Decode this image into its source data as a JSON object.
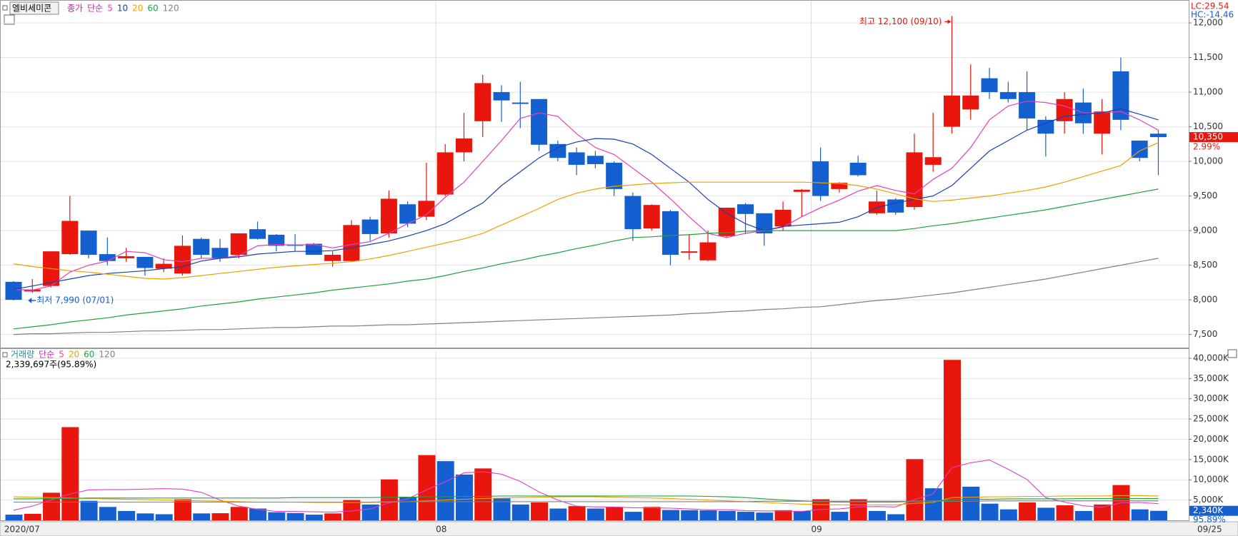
{
  "chart_data": [
    {
      "type": "candlestick",
      "title": "엘비세미콘",
      "legend_title": "종가",
      "legend_subtitle": "단순",
      "legend_title_color": "#d020b0",
      "lc_label": "LC:29.54",
      "hc_label": "HC:-14.46",
      "up_color": "#e8160c",
      "down_color": "#1560d0",
      "open": [
        8260,
        8120,
        8200,
        8660,
        9000,
        8660,
        8600,
        8620,
        8450,
        8380,
        8880,
        8750,
        8650,
        9020,
        8940,
        8800,
        8810,
        8560,
        8560,
        9160,
        8960,
        9380,
        9200,
        9520,
        10130,
        10580,
        11000,
        10850,
        10900,
        10250,
        10130,
        10080,
        9980,
        9500,
        9030,
        9280,
        8680,
        8570,
        8920,
        9380,
        9250,
        9060,
        9560,
        10000,
        9600,
        9980,
        9250,
        9450,
        9340,
        9950,
        10500,
        10750,
        11200,
        11000,
        11000,
        10600,
        10580,
        10850,
        10400,
        11300,
        10300,
        10400
      ],
      "high": [
        8270,
        8300,
        8700,
        9500,
        9000,
        8900,
        8750,
        8620,
        8600,
        8930,
        8900,
        8880,
        8960,
        9130,
        8950,
        8950,
        8820,
        8700,
        9150,
        9200,
        9580,
        9420,
        9980,
        10250,
        10700,
        11250,
        11100,
        11150,
        10900,
        10300,
        10200,
        10150,
        10000,
        9550,
        9380,
        9300,
        8950,
        9000,
        9330,
        9400,
        9250,
        9420,
        9600,
        10200,
        9700,
        10080,
        9580,
        9470,
        10400,
        10700,
        12100,
        11400,
        11350,
        11150,
        11300,
        10650,
        11000,
        11050,
        10900,
        11500,
        10300,
        10450
      ],
      "low": [
        7990,
        8100,
        8180,
        8650,
        8600,
        8500,
        8550,
        8350,
        8400,
        8350,
        8600,
        8550,
        8600,
        8870,
        8700,
        8700,
        8650,
        8480,
        8550,
        8850,
        8900,
        9050,
        9150,
        9500,
        10000,
        10350,
        10570,
        10480,
        10150,
        10000,
        9800,
        9900,
        9500,
        8850,
        9000,
        8500,
        8580,
        8560,
        8900,
        8950,
        8780,
        9000,
        9200,
        9430,
        9550,
        9780,
        9230,
        9230,
        9300,
        9850,
        10400,
        10600,
        10900,
        10850,
        10450,
        10070,
        10400,
        10400,
        10100,
        10450,
        10000,
        9800
      ],
      "close": [
        8000,
        8150,
        8700,
        9140,
        8650,
        8560,
        8630,
        8460,
        8520,
        8780,
        8650,
        8600,
        8960,
        8880,
        8780,
        8780,
        8650,
        8650,
        9080,
        8950,
        9460,
        9100,
        9430,
        10130,
        10330,
        11130,
        10880,
        10830,
        10240,
        10050,
        9950,
        9960,
        9600,
        9020,
        9370,
        8650,
        8700,
        8830,
        9330,
        9240,
        8960,
        9300,
        9590,
        9500,
        9690,
        9800,
        9420,
        9260,
        10130,
        10060,
        10950,
        10950,
        11000,
        10900,
        10620,
        10400,
        10900,
        10550,
        10720,
        10600,
        10050,
        10350
      ],
      "series": [
        {
          "name": "5",
          "color": "#e040c0",
          "values": [
            8150,
            8140,
            8200,
            8400,
            8500,
            8560,
            8700,
            8680,
            8580,
            8550,
            8600,
            8600,
            8640,
            8780,
            8800,
            8790,
            8800,
            8750,
            8800,
            8840,
            8960,
            9100,
            9230,
            9480,
            9700,
            10000,
            10300,
            10620,
            10700,
            10650,
            10400,
            10200,
            10100,
            9900,
            9700,
            9460,
            9200,
            8960,
            8900,
            8960,
            9000,
            9050,
            9200,
            9330,
            9440,
            9570,
            9650,
            9580,
            9530,
            9740,
            9900,
            10200,
            10600,
            10800,
            10870,
            10850,
            10800,
            10700,
            10700,
            10720,
            10600,
            10450
          ]
        },
        {
          "name": "10",
          "color": "#1a3fb0",
          "values": [
            8150,
            8200,
            8250,
            8300,
            8350,
            8380,
            8400,
            8420,
            8450,
            8480,
            8560,
            8600,
            8620,
            8660,
            8680,
            8700,
            8700,
            8710,
            8750,
            8800,
            8850,
            8920,
            9000,
            9100,
            9250,
            9400,
            9650,
            9850,
            10050,
            10200,
            10280,
            10330,
            10320,
            10250,
            10100,
            9900,
            9700,
            9450,
            9250,
            9100,
            9000,
            9060,
            9080,
            9100,
            9120,
            9200,
            9330,
            9400,
            9450,
            9500,
            9650,
            9900,
            10150,
            10300,
            10450,
            10550,
            10650,
            10680,
            10700,
            10760,
            10680,
            10600
          ]
        },
        {
          "name": "20",
          "color": "#f0a000",
          "values": [
            8520,
            8480,
            8450,
            8420,
            8400,
            8370,
            8340,
            8310,
            8300,
            8320,
            8350,
            8380,
            8410,
            8440,
            8470,
            8490,
            8510,
            8530,
            8550,
            8590,
            8640,
            8700,
            8760,
            8820,
            8880,
            8960,
            9080,
            9200,
            9320,
            9450,
            9540,
            9600,
            9640,
            9660,
            9680,
            9690,
            9700,
            9700,
            9700,
            9700,
            9700,
            9700,
            9700,
            9690,
            9680,
            9650,
            9600,
            9530,
            9460,
            9420,
            9440,
            9470,
            9500,
            9540,
            9580,
            9630,
            9700,
            9780,
            9860,
            9940,
            10150,
            10270
          ]
        },
        {
          "name": "60",
          "color": "#20a040",
          "values": [
            7580,
            7610,
            7640,
            7680,
            7710,
            7740,
            7780,
            7810,
            7840,
            7870,
            7910,
            7940,
            7970,
            8010,
            8040,
            8070,
            8100,
            8140,
            8170,
            8200,
            8230,
            8270,
            8300,
            8350,
            8410,
            8460,
            8520,
            8570,
            8630,
            8680,
            8740,
            8790,
            8850,
            8900,
            8910,
            8930,
            8940,
            8960,
            8970,
            8990,
            9000,
            9000,
            9000,
            9000,
            9000,
            9000,
            9000,
            9000,
            9030,
            9070,
            9100,
            9140,
            9180,
            9220,
            9260,
            9300,
            9350,
            9400,
            9450,
            9500,
            9550,
            9600
          ]
        },
        {
          "name": "120",
          "color": "#808080",
          "values": [
            7500,
            7510,
            7510,
            7520,
            7530,
            7530,
            7540,
            7550,
            7550,
            7560,
            7570,
            7570,
            7580,
            7590,
            7600,
            7600,
            7610,
            7620,
            7620,
            7630,
            7640,
            7640,
            7650,
            7660,
            7670,
            7680,
            7690,
            7700,
            7710,
            7720,
            7730,
            7740,
            7750,
            7760,
            7770,
            7780,
            7800,
            7810,
            7830,
            7840,
            7860,
            7870,
            7890,
            7900,
            7930,
            7960,
            7990,
            8010,
            8040,
            8070,
            8100,
            8140,
            8180,
            8220,
            8260,
            8300,
            8350,
            8400,
            8450,
            8500,
            8550,
            8600
          ]
        }
      ],
      "ylim": [
        7310,
        12310
      ],
      "yticks": [
        {
          "value": 7500,
          "label": "7,500"
        },
        {
          "value": 8000,
          "label": "8,000"
        },
        {
          "value": 8500,
          "label": "8,500"
        },
        {
          "value": 9000,
          "label": "9,000"
        },
        {
          "value": 9500,
          "label": "9,500"
        },
        {
          "value": 10000,
          "label": "10,000"
        },
        {
          "value": 10500,
          "label": "10,500"
        },
        {
          "value": 11000,
          "label": "11,000"
        },
        {
          "value": 11500,
          "label": "11,500"
        },
        {
          "value": 12000,
          "label": "12,000"
        }
      ],
      "grid": true,
      "annotations": [
        {
          "text": "최고 12,100 (09/10)"
        },
        {
          "text": "최저 7,990 (07/01)"
        }
      ],
      "last_price": {
        "value": 10350,
        "label": "10,350"
      },
      "change": {
        "value": 2.99,
        "label": "2.99%"
      }
    },
    {
      "type": "volume",
      "legend_title": "거래량",
      "legend_title_color": "#1a9090",
      "legend_subtitle": "단순",
      "info": "2,339,697주(95.89%)",
      "up_color": "#e8160c",
      "down_color": "#1560d0",
      "categories": [
        "2020/07",
        null,
        null,
        null,
        null,
        null,
        null,
        null,
        null,
        null,
        null,
        null,
        null,
        null,
        null,
        null,
        null,
        null,
        null,
        null,
        null,
        null,
        null,
        "08",
        null,
        null,
        null,
        null,
        null,
        null,
        null,
        null,
        null,
        null,
        null,
        null,
        null,
        null,
        null,
        null,
        null,
        null,
        null,
        "09",
        null,
        null,
        null,
        null,
        null,
        null,
        null,
        null,
        null,
        null,
        null,
        null,
        null,
        null,
        null,
        null,
        null,
        null
      ],
      "end_label": "09/25",
      "values": [
        1400,
        1600,
        6800,
        23000,
        4800,
        3300,
        2300,
        1700,
        1500,
        5200,
        1700,
        1750,
        3300,
        2900,
        2000,
        1800,
        1400,
        1700,
        5000,
        3900,
        10100,
        5800,
        16100,
        14600,
        11300,
        12800,
        5400,
        3900,
        4400,
        2900,
        3500,
        2900,
        3300,
        2100,
        3300,
        2550,
        2500,
        2450,
        2300,
        2100,
        1900,
        2500,
        2300,
        5200,
        2100,
        5200,
        2300,
        1500,
        15100,
        7900,
        39600,
        8300,
        4100,
        2700,
        4400,
        3100,
        3700,
        2300,
        3900,
        8700,
        2700,
        2340
      ],
      "series": [
        {
          "name": "5",
          "color": "#e040c0",
          "values": [
            2500,
            3500,
            5000,
            6500,
            7500,
            7600,
            7600,
            7700,
            7800,
            7700,
            6900,
            5000,
            3500,
            2700,
            2200,
            2200,
            2100,
            2000,
            2300,
            2800,
            4300,
            5300,
            7500,
            9500,
            11700,
            12000,
            11400,
            9600,
            7000,
            5000,
            3500,
            3300,
            3300,
            3100,
            3100,
            3000,
            2800,
            2600,
            2600,
            2400,
            2300,
            2300,
            2200,
            2700,
            2800,
            3300,
            3400,
            3300,
            5100,
            6500,
            13000,
            14200,
            14900,
            12600,
            10100,
            5600,
            4500,
            3600,
            3200,
            4300,
            4400,
            4100
          ]
        },
        {
          "name": "20",
          "color": "#f0a000",
          "values": [
            5800,
            5700,
            5600,
            5500,
            5400,
            5300,
            5200,
            5100,
            5000,
            4900,
            4800,
            4700,
            4600,
            4500,
            4500,
            4500,
            4400,
            4400,
            4400,
            4400,
            4500,
            4600,
            4800,
            5000,
            5200,
            5400,
            5500,
            5600,
            5700,
            5800,
            5800,
            5800,
            5700,
            5600,
            5500,
            5400,
            5200,
            5000,
            4800,
            4600,
            4400,
            4200,
            4000,
            3900,
            3800,
            3800,
            3800,
            3800,
            4200,
            4400,
            5600,
            5700,
            5800,
            5800,
            5900,
            5900,
            6000,
            6000,
            6000,
            6100,
            6100,
            6000
          ]
        },
        {
          "name": "60",
          "color": "#20a040",
          "values": [
            5300,
            5300,
            5400,
            5400,
            5500,
            5500,
            5500,
            5500,
            5500,
            5500,
            5500,
            5500,
            5500,
            5500,
            5500,
            5600,
            5600,
            5600,
            5600,
            5600,
            5700,
            5700,
            5800,
            5800,
            5900,
            5900,
            6000,
            6000,
            6000,
            6000,
            6000,
            6000,
            6000,
            6000,
            6000,
            6000,
            6000,
            5900,
            5800,
            5600,
            5300,
            5000,
            4800,
            4600,
            4500,
            4500,
            4500,
            4500,
            4700,
            4800,
            5100,
            5200,
            5200,
            5300,
            5300,
            5300,
            5300,
            5400,
            5400,
            5400,
            5400,
            5400
          ]
        },
        {
          "name": "120",
          "color": "#808080",
          "values": [
            4500,
            4500,
            4500,
            4500,
            4500,
            4500,
            4500,
            4500,
            4500,
            4500,
            4500,
            4500,
            4500,
            4500,
            4500,
            4500,
            4500,
            4500,
            4500,
            4500,
            4600,
            4600,
            4600,
            4600,
            4600,
            4600,
            4600,
            4600,
            4600,
            4600,
            4600,
            4600,
            4600,
            4600,
            4600,
            4600,
            4600,
            4600,
            4600,
            4600,
            4700,
            4700,
            4700,
            4700,
            4700,
            4700,
            4700,
            4700,
            4700,
            4700,
            4700,
            4700,
            4800,
            4800,
            4800,
            4800,
            4800,
            4800,
            4800,
            4800,
            4800,
            4800
          ]
        }
      ],
      "ylim": [
        0,
        41760
      ],
      "yticks": [
        {
          "value": 5000,
          "label": "5,000K"
        },
        {
          "value": 10000,
          "label": "10,000K"
        },
        {
          "value": 15000,
          "label": "15,000K"
        },
        {
          "value": 20000,
          "label": "20,000K"
        },
        {
          "value": 25000,
          "label": "25,000K"
        },
        {
          "value": 30000,
          "label": "30,000K"
        },
        {
          "value": 35000,
          "label": "35,000K"
        },
        {
          "value": 40000,
          "label": "40,000K"
        }
      ],
      "grid": true,
      "last_volume": {
        "value": 2340,
        "label": "2,340K"
      },
      "ratio": {
        "value": 95.89,
        "label": "95.89%"
      }
    }
  ]
}
